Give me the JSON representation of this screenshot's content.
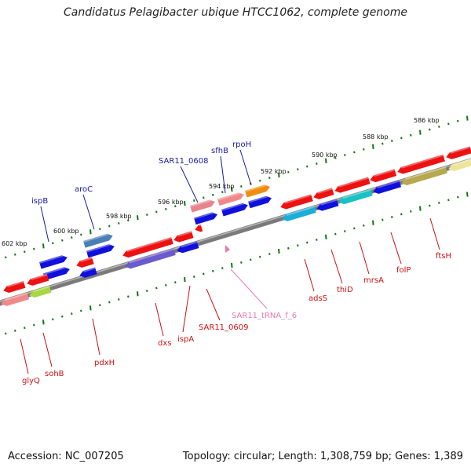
{
  "title": "Candidatus Pelagibacter ubique HTCC1062, complete genome",
  "footer": {
    "accession": "Accession: NC_007205",
    "summary": "Topology: circular; Length: 1,308,759 bp; Genes: 1,389"
  },
  "colors": {
    "backbone": "#7a7a7a",
    "tick": "#117711",
    "label_forward": "#1a1aa6",
    "label_reverse": "#cc1111",
    "label_rna": "#e87ab0",
    "gene_red": "#ee1111",
    "gene_pink": "#e8858a",
    "gene_blue": "#1010dd",
    "gene_steel": "#4a7fb5",
    "gene_orange": "#f08c10",
    "gene_cyan": "#1aaed8",
    "gene_teal": "#18c2c2",
    "gene_olive": "#b5a84e",
    "gene_yellow": "#ede49a",
    "gene_purple": "#6a5acd",
    "gene_lime": "#a8d840",
    "gene_salmon": "#f08a8a"
  },
  "kbp_labels": [
    "586 kbp",
    "588 kbp",
    "590 kbp",
    "592 kbp",
    "594 kbp",
    "596 kbp",
    "598 kbp",
    "600 kbp",
    "602 kbp"
  ],
  "gene_labels_forward": [
    "SAR11_0608",
    "sfhB",
    "rpoH",
    "ispB",
    "aroC"
  ],
  "gene_labels_reverse": [
    "adsS",
    "thiD",
    "mrsA",
    "folP",
    "ftsH",
    "dxs",
    "ispA",
    "SAR11_0609",
    "pdxH",
    "glyQ",
    "sohB"
  ],
  "gene_labels_rna": [
    "SAR11_tRNA_f_6"
  ]
}
